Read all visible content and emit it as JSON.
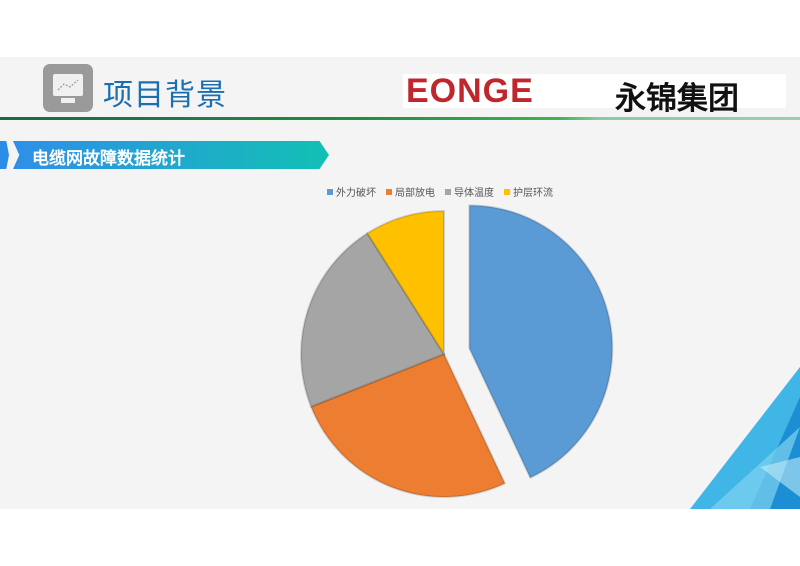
{
  "header": {
    "title": "项目背景",
    "logo_en": "EONGE",
    "logo_cn": "永锦集团"
  },
  "section": {
    "title": "电缆网故障数据统计"
  },
  "chart_data": {
    "type": "pie",
    "title": "",
    "legend_position": "top",
    "categories": [
      "外力破坏",
      "局部放电",
      "导体温度",
      "护层环流"
    ],
    "values": [
      43,
      26,
      22,
      9
    ],
    "colors": [
      "#5b9bd5",
      "#ed7d31",
      "#a5a5a5",
      "#ffc000"
    ],
    "exploded": [
      true,
      false,
      false,
      false
    ]
  }
}
